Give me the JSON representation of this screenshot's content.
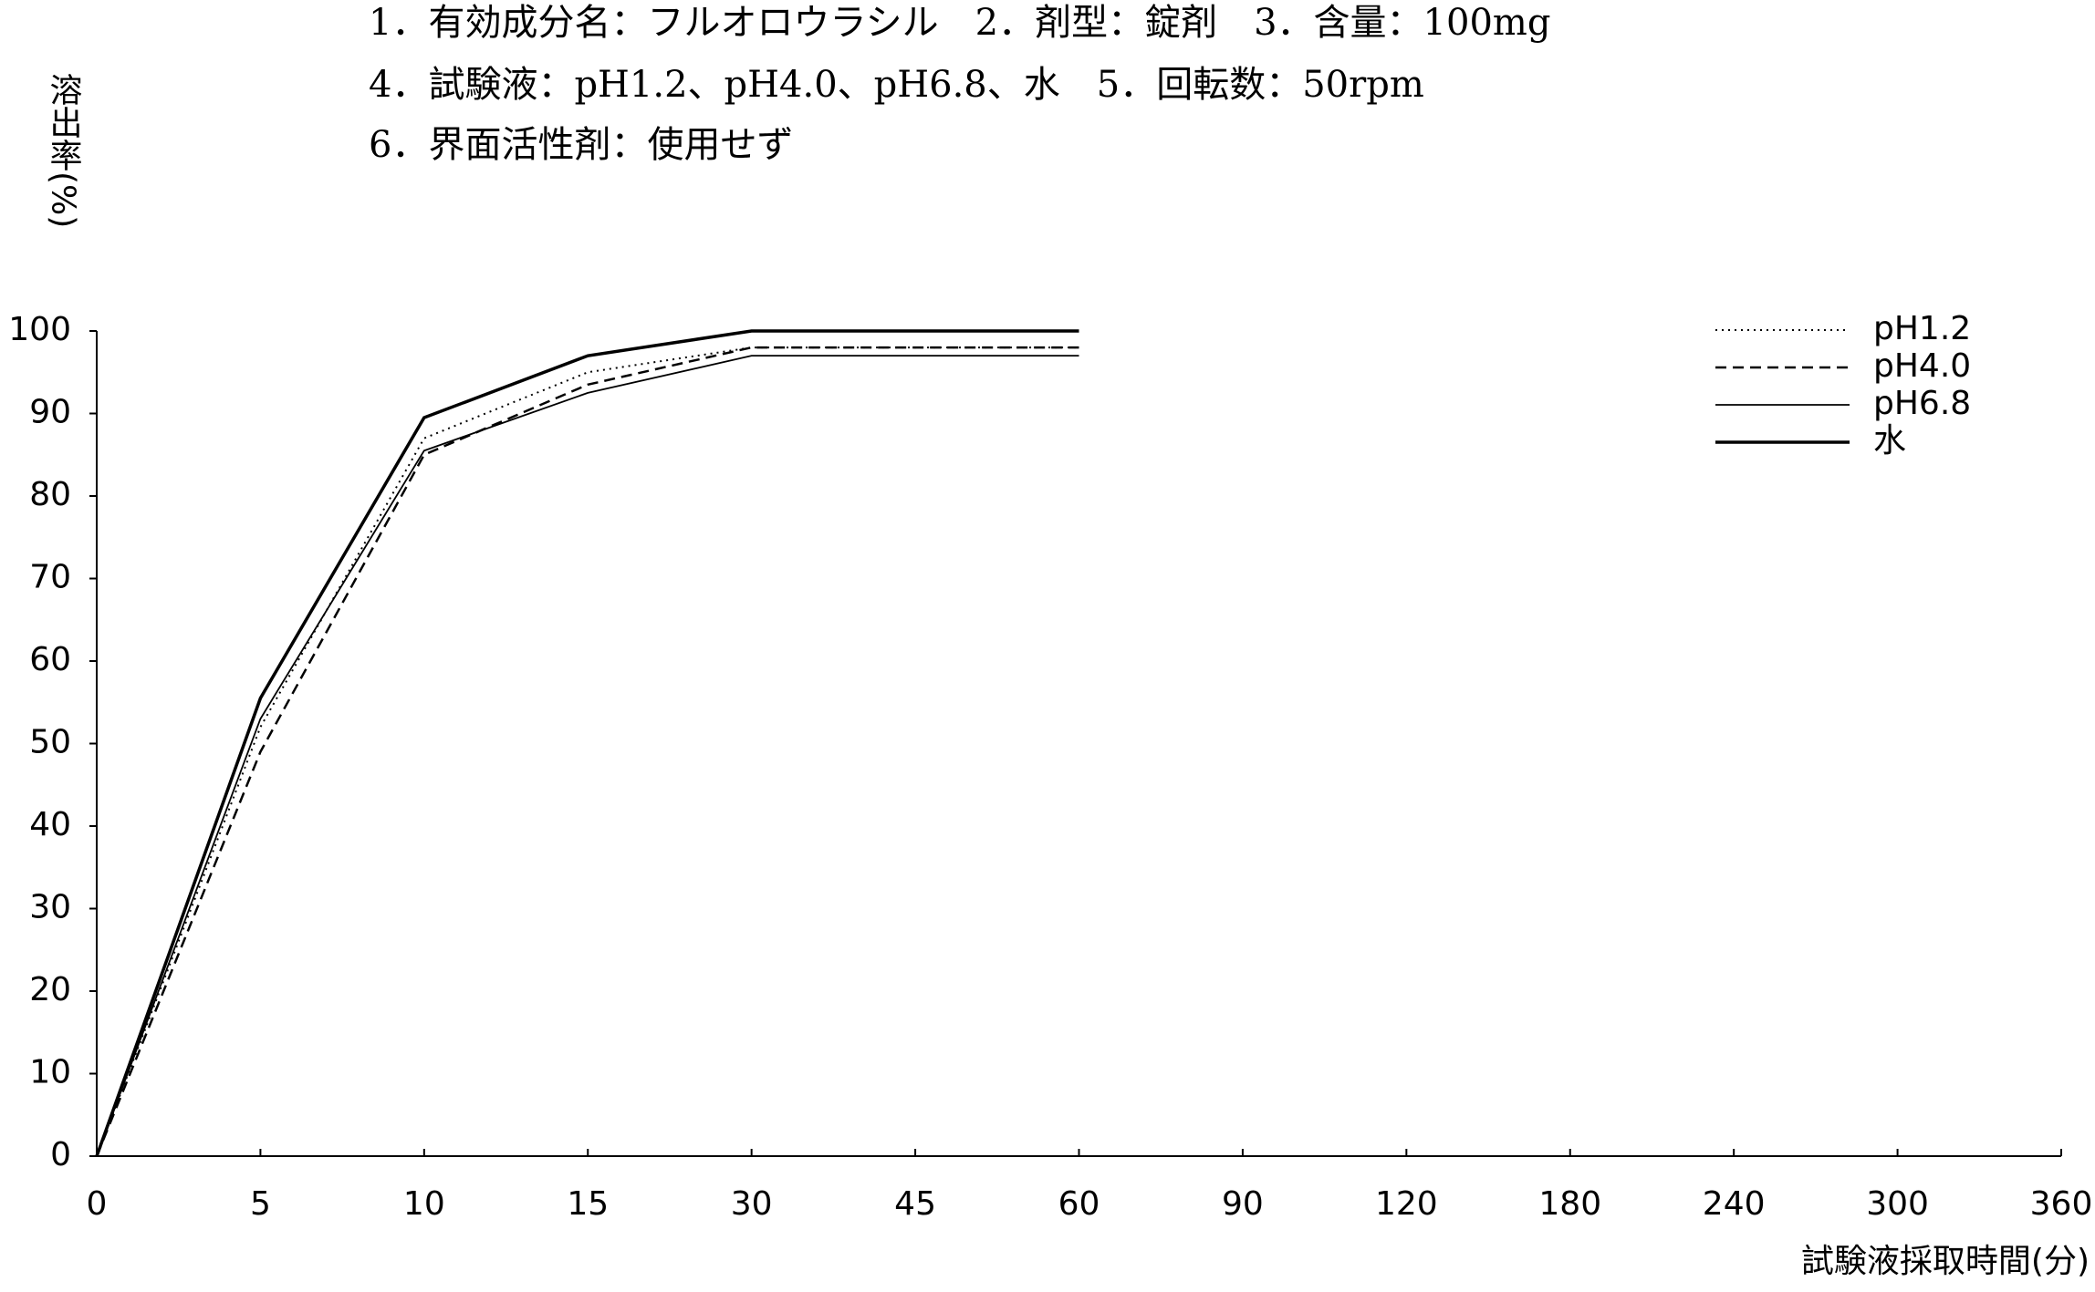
{
  "chart_data": {
    "type": "line",
    "header": [
      "1．有効成分名：フルオロウラシル　2．剤型：錠剤　3．含量：100mg",
      "4．試験液：pH1.2、pH4.0、pH6.8、水　5．回転数：50rpm",
      "6．界面活性剤：使用せず"
    ],
    "y_label": "溶出率(%)",
    "x_label": "試験液採取時間(分)",
    "categories": [
      0,
      5,
      10,
      15,
      30,
      45,
      60,
      90,
      120,
      180,
      240,
      300,
      360
    ],
    "ylim": [
      0,
      100
    ],
    "yticks": [
      0,
      10,
      20,
      30,
      40,
      50,
      60,
      70,
      80,
      90,
      100
    ],
    "legend": "top-right",
    "series": [
      {
        "name": "pH1.2",
        "color": "#000000",
        "line_style": "dotted",
        "values": [
          0,
          52,
          87,
          95,
          98,
          98,
          98,
          null,
          null,
          null,
          null,
          null,
          null
        ]
      },
      {
        "name": "pH4.0",
        "color": "#000000",
        "line_style": "dashed",
        "values": [
          0,
          49,
          85,
          93.5,
          98,
          98,
          98,
          null,
          null,
          null,
          null,
          null,
          null
        ]
      },
      {
        "name": "pH6.8",
        "color": "#000000",
        "line_style": "solid",
        "values": [
          0,
          53,
          85.5,
          92.5,
          97,
          97,
          97,
          null,
          null,
          null,
          null,
          null,
          null
        ]
      },
      {
        "name": "水",
        "color": "#000000",
        "line_style": "bold",
        "values": [
          0,
          55.5,
          89.5,
          97,
          100,
          100,
          100,
          null,
          null,
          null,
          null,
          null,
          null
        ]
      }
    ]
  }
}
